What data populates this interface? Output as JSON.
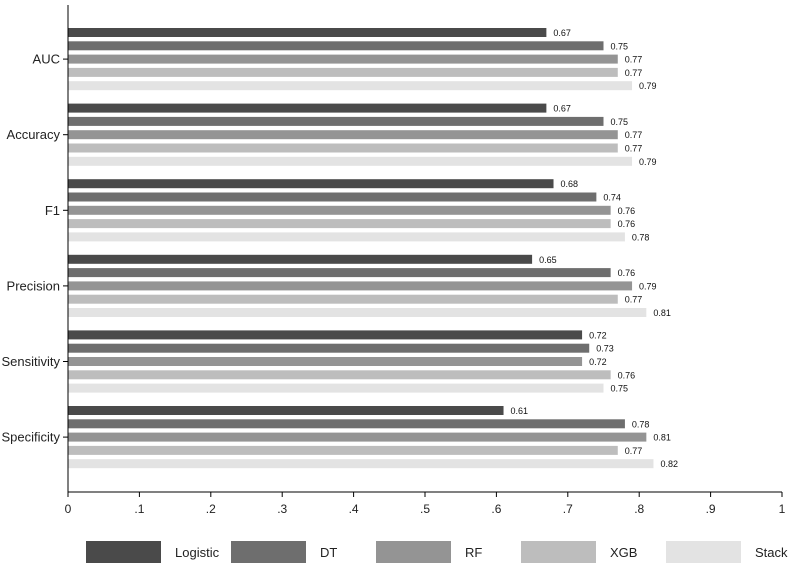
{
  "chart_data": {
    "type": "bar",
    "orientation": "horizontal",
    "categories": [
      "AUC",
      "Accuracy",
      "F1",
      "Precision",
      "Sensitivity",
      "Specificity"
    ],
    "series": [
      {
        "name": "Logistic",
        "color": "#4a4a4a",
        "values": [
          0.67,
          0.67,
          0.68,
          0.65,
          0.72,
          0.61
        ]
      },
      {
        "name": "DT",
        "color": "#6e6e6e",
        "values": [
          0.75,
          0.75,
          0.74,
          0.76,
          0.73,
          0.78
        ]
      },
      {
        "name": "RF",
        "color": "#949494",
        "values": [
          0.77,
          0.77,
          0.76,
          0.79,
          0.72,
          0.81
        ]
      },
      {
        "name": "XGB",
        "color": "#bdbdbd",
        "values": [
          0.77,
          0.77,
          0.76,
          0.77,
          0.76,
          0.77
        ]
      },
      {
        "name": "Stack",
        "color": "#e3e3e3",
        "values": [
          0.79,
          0.79,
          0.78,
          0.81,
          0.75,
          0.82
        ]
      }
    ],
    "xlim": [
      0,
      1
    ],
    "xticks": [
      "0",
      ".1",
      ".2",
      ".3",
      ".4",
      ".5",
      ".6",
      ".7",
      ".8",
      ".9",
      "1"
    ],
    "grid": false,
    "legend_position": "bottom"
  }
}
